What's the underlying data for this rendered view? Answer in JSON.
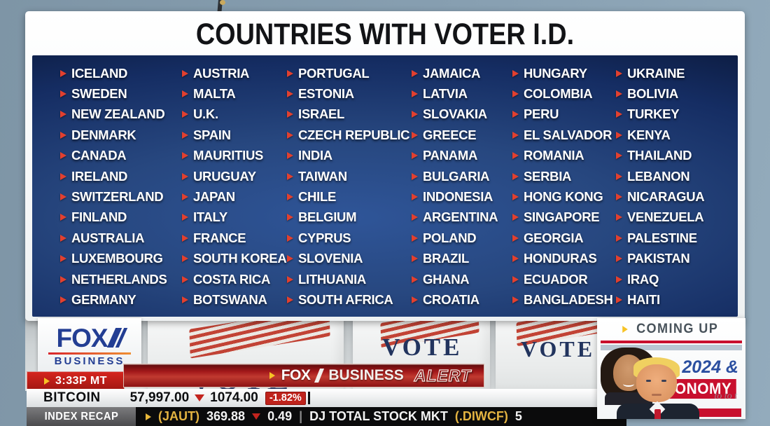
{
  "title": "COUNTRIES WITH VOTER I.D.",
  "countries": {
    "columns": [
      [
        "ICELAND",
        "SWEDEN",
        "NEW ZEALAND",
        "DENMARK",
        "CANADA",
        "IRELAND",
        "SWITZERLAND",
        "FINLAND",
        "AUSTRALIA",
        "LUXEMBOURG",
        "NETHERLANDS",
        "GERMANY"
      ],
      [
        "AUSTRIA",
        "MALTA",
        "U.K.",
        "SPAIN",
        "MAURITIUS",
        "URUGUAY",
        "JAPAN",
        "ITALY",
        "FRANCE",
        "SOUTH KOREA",
        "COSTA RICA",
        "BOTSWANA"
      ],
      [
        "PORTUGAL",
        "ESTONIA",
        "ISRAEL",
        "CZECH REPUBLIC",
        "INDIA",
        "TAIWAN",
        "CHILE",
        "BELGIUM",
        "CYPRUS",
        "SLOVENIA",
        "LITHUANIA",
        "SOUTH AFRICA"
      ],
      [
        "JAMAICA",
        "LATVIA",
        "SLOVAKIA",
        "GREECE",
        "PANAMA",
        "BULGARIA",
        "INDONESIA",
        "ARGENTINA",
        "POLAND",
        "BRAZIL",
        "GHANA",
        "CROATIA"
      ],
      [
        "HUNGARY",
        "COLOMBIA",
        "PERU",
        "EL SALVADOR",
        "ROMANIA",
        "SERBIA",
        "HONG KONG",
        "SINGAPORE",
        "GEORGIA",
        "HONDURAS",
        "ECUADOR",
        "BANGLADESH"
      ],
      [
        "UKRAINE",
        "BOLIVIA",
        "TURKEY",
        "KENYA",
        "THAILAND",
        "LEBANON",
        "NICARAGUA",
        "VENEZUELA",
        "PALESTINE",
        "PAKISTAN",
        "IRAQ",
        "HAITI"
      ]
    ]
  },
  "channel": {
    "logo_line1": "FOX",
    "logo_line2": "BUSINESS",
    "time": "3:33P MT"
  },
  "alert": {
    "brand_fox": "FOX",
    "brand_business": "BUSINESS",
    "alert_word": "ALERT"
  },
  "ticker_bitcoin": {
    "symbol": "BITCOIN",
    "price": "57,997.00",
    "change": "1074.00",
    "pct_change": "-1.82%"
  },
  "ticker_index": {
    "label": "INDEX RECAP",
    "ticker1": "(JAUT)",
    "value1": "369.88",
    "change1": "0.49",
    "separator": "|",
    "name2": "DJ TOTAL STOCK MKT",
    "ticker2": "(.DIWCF)",
    "value2": "5"
  },
  "coming_up": {
    "header": "COMING UP",
    "topic_line1": "2024 &",
    "topic_line2": "ECONOMY",
    "scribble": "to to t"
  },
  "video": {
    "vote_sign": "VOTE"
  },
  "colors": {
    "panel_navy": "#24447f",
    "bullet_red": "#e2402f",
    "alert_red": "#a3181a",
    "accent_red": "#c8102e",
    "badge_red": "#bf231c",
    "ticker_gold": "#e3b341",
    "fox_blue": "#233e93",
    "vote_navy": "#22345e"
  }
}
